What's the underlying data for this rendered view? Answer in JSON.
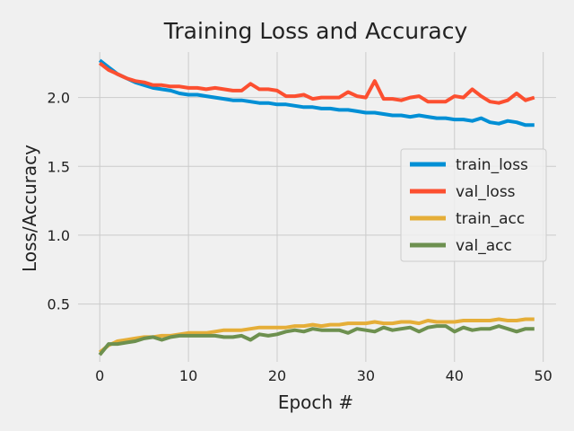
{
  "chart_data": {
    "type": "line",
    "title": "Training Loss and Accuracy",
    "xlabel": "Epoch #",
    "ylabel": "Loss/Accuracy",
    "xlim": [
      -2.45,
      51.45
    ],
    "ylim": [
      0.08,
      2.33
    ],
    "xticks": [
      0,
      10,
      20,
      30,
      40,
      50
    ],
    "yticks": [
      0.5,
      1.0,
      1.5,
      2.0
    ],
    "ytick_labels": [
      "0.5",
      "1.0",
      "1.5",
      "2.0"
    ],
    "grid": true,
    "legend_position": "center-right",
    "series": [
      {
        "name": "train_loss",
        "color": "#008fd5",
        "values": [
          2.27,
          2.22,
          2.17,
          2.14,
          2.11,
          2.09,
          2.07,
          2.06,
          2.05,
          2.03,
          2.02,
          2.02,
          2.01,
          2.0,
          1.99,
          1.98,
          1.98,
          1.97,
          1.96,
          1.96,
          1.95,
          1.95,
          1.94,
          1.93,
          1.93,
          1.92,
          1.92,
          1.91,
          1.91,
          1.9,
          1.89,
          1.89,
          1.88,
          1.87,
          1.87,
          1.86,
          1.87,
          1.86,
          1.85,
          1.85,
          1.84,
          1.84,
          1.83,
          1.85,
          1.82,
          1.81,
          1.83,
          1.82,
          1.8,
          1.8
        ]
      },
      {
        "name": "val_loss",
        "color": "#fc4f30",
        "values": [
          2.25,
          2.2,
          2.17,
          2.14,
          2.12,
          2.11,
          2.09,
          2.09,
          2.08,
          2.08,
          2.07,
          2.07,
          2.06,
          2.07,
          2.06,
          2.05,
          2.05,
          2.1,
          2.06,
          2.06,
          2.05,
          2.01,
          2.01,
          2.02,
          1.99,
          2.0,
          2.0,
          2.0,
          2.04,
          2.01,
          2.0,
          2.12,
          1.99,
          1.99,
          1.98,
          2.0,
          2.01,
          1.97,
          1.97,
          1.97,
          2.01,
          2.0,
          2.06,
          2.01,
          1.97,
          1.96,
          1.98,
          2.03,
          1.98,
          2.0
        ]
      },
      {
        "name": "train_acc",
        "color": "#e5ae38",
        "values": [
          0.15,
          0.2,
          0.23,
          0.24,
          0.25,
          0.26,
          0.26,
          0.27,
          0.27,
          0.28,
          0.29,
          0.29,
          0.29,
          0.3,
          0.31,
          0.31,
          0.31,
          0.32,
          0.33,
          0.33,
          0.33,
          0.33,
          0.34,
          0.34,
          0.35,
          0.34,
          0.35,
          0.35,
          0.36,
          0.36,
          0.36,
          0.37,
          0.36,
          0.36,
          0.37,
          0.37,
          0.36,
          0.38,
          0.37,
          0.37,
          0.37,
          0.38,
          0.38,
          0.38,
          0.38,
          0.39,
          0.38,
          0.38,
          0.39,
          0.39
        ]
      },
      {
        "name": "val_acc",
        "color": "#6d904f",
        "values": [
          0.13,
          0.21,
          0.21,
          0.22,
          0.23,
          0.25,
          0.26,
          0.24,
          0.26,
          0.27,
          0.27,
          0.27,
          0.27,
          0.27,
          0.26,
          0.26,
          0.27,
          0.24,
          0.28,
          0.27,
          0.28,
          0.3,
          0.31,
          0.3,
          0.32,
          0.31,
          0.31,
          0.31,
          0.29,
          0.32,
          0.31,
          0.3,
          0.33,
          0.31,
          0.32,
          0.33,
          0.3,
          0.33,
          0.34,
          0.34,
          0.3,
          0.33,
          0.31,
          0.32,
          0.32,
          0.34,
          0.32,
          0.3,
          0.32,
          0.32
        ]
      }
    ]
  }
}
